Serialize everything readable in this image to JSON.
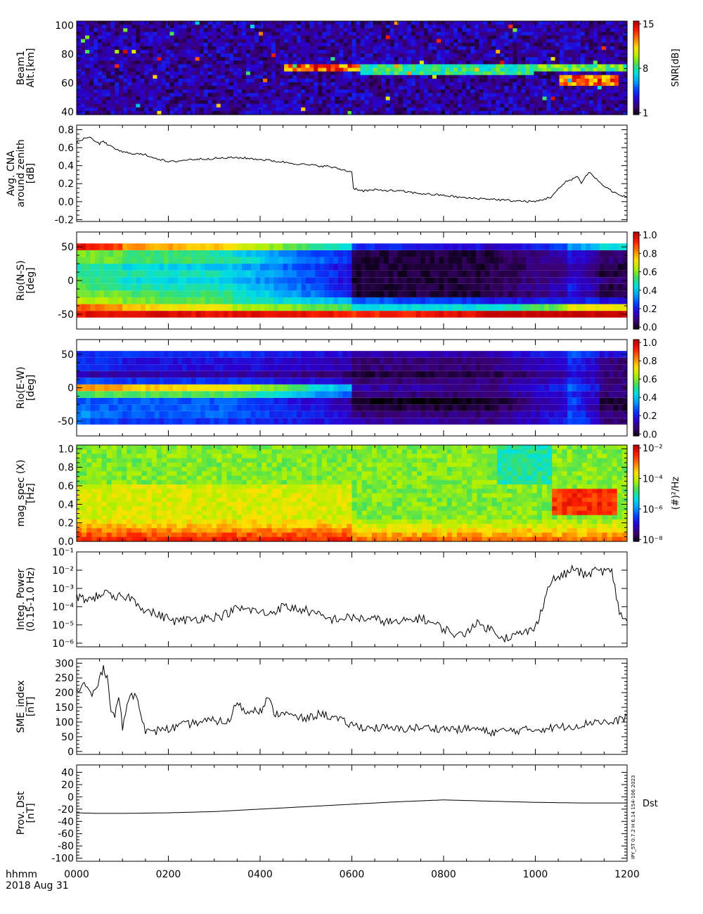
{
  "footer": {
    "time_label": "hhmm",
    "date_label": "2018 Aug 31",
    "version_stamp": "IPY_5T 0.7.2 H 6.14 154-106 2023"
  },
  "colors": {
    "line": "#000000",
    "jet": [
      "#000000",
      "#3a0070",
      "#2a00d0",
      "#0040ff",
      "#00a0ff",
      "#00e0e0",
      "#40e060",
      "#b0f000",
      "#ffe000",
      "#ff8000",
      "#ff2000",
      "#c00000"
    ]
  },
  "chart_data": [
    {
      "id": "riometer-snr",
      "type": "heatmap",
      "ylabel": [
        "Beam1",
        "Alt.[km]"
      ],
      "yticks": [
        40,
        60,
        80,
        100
      ],
      "ylim": [
        38,
        103
      ],
      "xlim": [
        0,
        720
      ],
      "colorbar": {
        "label": "SNR[dB]",
        "ticks": [
          "1",
          "8",
          "15"
        ]
      },
      "features": [
        {
          "t0": 270,
          "t1": 370,
          "alt": 70,
          "value": 15
        },
        {
          "t0": 370,
          "t1": 600,
          "alt": 69,
          "value": 9
        },
        {
          "t0": 600,
          "t1": 720,
          "alt": 70,
          "value": 10
        },
        {
          "t0": 630,
          "t1": 710,
          "alt": 62,
          "value": 15
        }
      ]
    },
    {
      "id": "avg-cna",
      "type": "line",
      "ylabel": [
        "Avg. CNA",
        "around zenith",
        "[dB]"
      ],
      "yticks": [
        "-0.2",
        "0.0",
        "0.2",
        "0.4",
        "0.6",
        "0.8"
      ],
      "ytick_values": [
        -0.2,
        0.0,
        0.2,
        0.4,
        0.6,
        0.8
      ],
      "ylim": [
        -0.22,
        0.85
      ],
      "xlim": [
        0,
        720
      ],
      "x": [
        0,
        15,
        30,
        35,
        40,
        60,
        90,
        120,
        150,
        180,
        210,
        240,
        270,
        300,
        330,
        360,
        362,
        375,
        390,
        420,
        450,
        480,
        510,
        540,
        570,
        600,
        620,
        640,
        655,
        660,
        670,
        690,
        710,
        720
      ],
      "y": [
        0.66,
        0.72,
        0.64,
        0.68,
        0.63,
        0.55,
        0.52,
        0.44,
        0.47,
        0.48,
        0.49,
        0.47,
        0.44,
        0.41,
        0.39,
        0.33,
        0.15,
        0.12,
        0.13,
        0.12,
        0.09,
        0.07,
        0.04,
        0.03,
        0.01,
        0.0,
        0.05,
        0.22,
        0.28,
        0.21,
        0.33,
        0.17,
        0.07,
        0.05
      ]
    },
    {
      "id": "rio-ns",
      "type": "heatmap",
      "ylabel": [
        "Rio(N-S)",
        "[deg]"
      ],
      "yticks": [
        -50,
        0,
        50
      ],
      "ylim": [
        -72,
        72
      ],
      "xlim": [
        0,
        720
      ],
      "colorbar": {
        "label": "",
        "ticks": [
          "0.0",
          "0.2",
          "0.4",
          "0.6",
          "0.8",
          "1.0"
        ]
      },
      "rows": [
        -50,
        -40,
        -30,
        -20,
        -10,
        0,
        10,
        20,
        30,
        40,
        50
      ],
      "segments_t": [
        0,
        60,
        200,
        360,
        530,
        640,
        680,
        720
      ],
      "values": [
        [
          0.95,
          0.95,
          0.95,
          0.9,
          1.0,
          1.0,
          1.0
        ],
        [
          0.85,
          0.75,
          0.65,
          0.45,
          0.45,
          0.7,
          0.7
        ],
        [
          0.65,
          0.6,
          0.5,
          0.3,
          0.2,
          0.25,
          0.2
        ],
        [
          0.6,
          0.55,
          0.5,
          0.05,
          0.05,
          0.2,
          0.05
        ],
        [
          0.55,
          0.5,
          0.45,
          0.05,
          0.05,
          0.25,
          0.05
        ],
        [
          0.55,
          0.45,
          0.4,
          0.05,
          0.05,
          0.2,
          0.1
        ],
        [
          0.5,
          0.5,
          0.45,
          0.05,
          0.05,
          0.15,
          0.05
        ],
        [
          0.5,
          0.45,
          0.4,
          0.05,
          0.05,
          0.15,
          0.05
        ],
        [
          0.6,
          0.55,
          0.5,
          0.05,
          0.05,
          0.2,
          0.1
        ],
        [
          0.6,
          0.55,
          0.45,
          0.05,
          0.05,
          0.2,
          0.1
        ],
        [
          0.95,
          0.8,
          0.7,
          0.25,
          0.15,
          0.35,
          0.45
        ]
      ]
    },
    {
      "id": "rio-ew",
      "type": "heatmap",
      "ylabel": [
        "Rio(E-W)",
        "[deg]"
      ],
      "yticks": [
        -50,
        0,
        50
      ],
      "ylim": [
        -72,
        72
      ],
      "xlim": [
        0,
        720
      ],
      "colorbar": {
        "label": "",
        "ticks": [
          "0.0",
          "0.2",
          "0.4",
          "0.6",
          "0.8",
          "1.0"
        ]
      },
      "rows": [
        -50,
        -40,
        -30,
        -20,
        -10,
        0,
        10,
        20,
        30,
        40,
        50
      ],
      "segments_t": [
        0,
        60,
        200,
        360,
        530,
        640,
        680,
        720
      ],
      "values": [
        [
          0.3,
          0.25,
          0.25,
          0.15,
          0.1,
          0.3,
          0.1
        ],
        [
          0.35,
          0.3,
          0.3,
          0.1,
          0.1,
          0.3,
          0.1
        ],
        [
          0.3,
          0.3,
          0.3,
          0.05,
          0.05,
          0.25,
          0.05
        ],
        [
          0.3,
          0.3,
          0.3,
          0.02,
          0.02,
          0.3,
          0.05
        ],
        [
          0.55,
          0.55,
          0.55,
          0.1,
          0.1,
          0.25,
          0.1
        ],
        [
          0.8,
          0.75,
          0.7,
          0.15,
          0.1,
          0.35,
          0.1
        ],
        [
          0.3,
          0.25,
          0.25,
          0.1,
          0.1,
          0.25,
          0.1
        ],
        [
          0.15,
          0.15,
          0.15,
          0.05,
          0.05,
          0.2,
          0.1
        ],
        [
          0.25,
          0.2,
          0.2,
          0.1,
          0.1,
          0.25,
          0.1
        ],
        [
          0.25,
          0.2,
          0.2,
          0.1,
          0.1,
          0.25,
          0.1
        ],
        [
          0.25,
          0.25,
          0.25,
          0.15,
          0.15,
          0.3,
          0.2
        ]
      ]
    },
    {
      "id": "mag-spec",
      "type": "heatmap",
      "ylabel": [
        "mag_spec (X)",
        "[Hz]"
      ],
      "yticks": [
        "0.0",
        "0.2",
        "0.4",
        "0.6",
        "0.8",
        "1.0"
      ],
      "ytick_values": [
        0.0,
        0.2,
        0.4,
        0.6,
        0.8,
        1.0
      ],
      "ylim": [
        0,
        1.04
      ],
      "xlim": [
        0,
        720
      ],
      "colorbar": {
        "label": "(#)²/Hz",
        "ticks": [
          "10⁻⁸",
          "10⁻⁶",
          "10⁻⁴",
          "10⁻²"
        ]
      },
      "features": [
        {
          "t0": 620,
          "t1": 710,
          "f": 0.45,
          "value": "10⁻²"
        },
        {
          "t0": 0,
          "t1": 720,
          "f": 0.02,
          "value": "10⁻²"
        }
      ]
    },
    {
      "id": "integ-power",
      "type": "line",
      "ylabel": [
        "Integ. Power",
        "(0.15-1.0 Hz)"
      ],
      "yscale": "log",
      "yticks": [
        "10⁻⁶",
        "10⁻⁵",
        "10⁻⁴",
        "10⁻³",
        "10⁻²",
        "10⁻¹"
      ],
      "ytick_exponents": [
        -6,
        -5,
        -4,
        -3,
        -2,
        -1
      ],
      "ylim_log10": [
        -6.2,
        -1
      ],
      "xlim": [
        0,
        720
      ],
      "x": [
        0,
        20,
        35,
        50,
        60,
        70,
        80,
        90,
        110,
        130,
        150,
        170,
        190,
        210,
        230,
        250,
        270,
        300,
        330,
        360,
        390,
        420,
        450,
        480,
        500,
        510,
        520,
        540,
        560,
        580,
        600,
        605,
        620,
        640,
        650,
        665,
        680,
        700,
        710,
        720
      ],
      "log10_y": [
        -3.5,
        -3.6,
        -3.2,
        -3.6,
        -3.4,
        -3.5,
        -3.8,
        -4.2,
        -4.5,
        -4.8,
        -4.7,
        -4.6,
        -4.5,
        -4.1,
        -4.2,
        -4.4,
        -4.0,
        -4.2,
        -4.7,
        -4.6,
        -4.7,
        -4.9,
        -4.6,
        -5.2,
        -5.6,
        -5.4,
        -4.9,
        -5.2,
        -5.7,
        -5.5,
        -5.2,
        -4.5,
        -2.6,
        -2.2,
        -1.9,
        -2.3,
        -2.0,
        -2.1,
        -4.3,
        -4.8
      ]
    },
    {
      "id": "sme-index",
      "type": "line",
      "ylabel": [
        "SME_index",
        "[nT]"
      ],
      "yticks": [
        0,
        50,
        100,
        150,
        200,
        250,
        300
      ],
      "ylim": [
        -10,
        315
      ],
      "xlim": [
        0,
        720
      ],
      "x": [
        0,
        10,
        20,
        30,
        35,
        40,
        45,
        50,
        55,
        60,
        70,
        80,
        90,
        100,
        110,
        120,
        140,
        160,
        180,
        200,
        210,
        220,
        235,
        240,
        250,
        260,
        270,
        280,
        300,
        320,
        340,
        360,
        380,
        400,
        420,
        440,
        460,
        480,
        500,
        520,
        540,
        560,
        580,
        600,
        620,
        640,
        660,
        680,
        700,
        720
      ],
      "y": [
        200,
        230,
        190,
        240,
        290,
        250,
        150,
        120,
        190,
        80,
        200,
        180,
        70,
        60,
        80,
        75,
        90,
        100,
        105,
        100,
        175,
        130,
        150,
        135,
        180,
        125,
        135,
        120,
        110,
        130,
        110,
        90,
        80,
        80,
        75,
        80,
        80,
        78,
        75,
        78,
        65,
        70,
        72,
        75,
        80,
        85,
        90,
        105,
        95,
        120
      ]
    },
    {
      "id": "prov-dst",
      "type": "line",
      "ylabel": [
        "Prov. Dst",
        "[nT]"
      ],
      "series_label": "Dst",
      "yticks": [
        -100,
        -80,
        -60,
        -40,
        -20,
        0,
        20,
        40
      ],
      "ylim": [
        -105,
        52
      ],
      "xlim": [
        0,
        720
      ],
      "x": [
        0,
        30,
        60,
        120,
        180,
        240,
        300,
        360,
        420,
        480,
        540,
        600,
        660,
        720
      ],
      "y": [
        -26,
        -27,
        -27,
        -26,
        -24,
        -20,
        -16,
        -12,
        -8,
        -5,
        -7,
        -9,
        -10,
        -10
      ]
    }
  ],
  "xaxis": {
    "ticks": [
      "0000",
      "0200",
      "0400",
      "0600",
      "0800",
      "1000",
      "1200"
    ],
    "tick_values": [
      0,
      120,
      240,
      360,
      480,
      600,
      720
    ]
  }
}
